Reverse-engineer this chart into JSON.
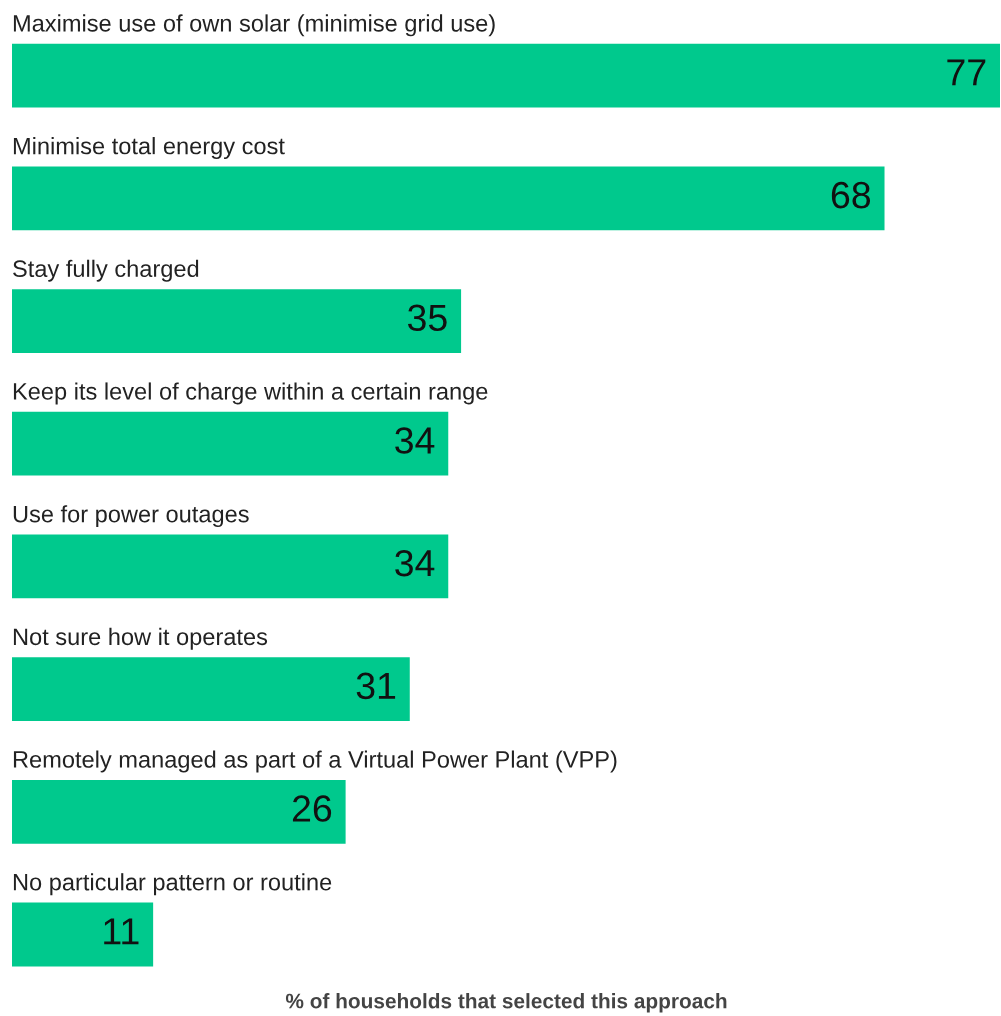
{
  "chart_data": {
    "type": "bar",
    "orientation": "horizontal",
    "xlabel": "% of households that selected this approach",
    "categories": [
      "Maximise use of own solar (minimise grid use)",
      "Minimise total energy cost",
      "Stay fully charged",
      "Keep its level of charge within a certain range",
      "Use for power outages",
      "Not sure how it operates",
      "Remotely managed as part of a Virtual Power Plant (VPP)",
      "No particular pattern or routine"
    ],
    "values": [
      77,
      68,
      35,
      34,
      34,
      31,
      26,
      11
    ],
    "color": "#00c98d",
    "xlim": [
      0,
      77
    ],
    "data_labels": true,
    "tick_labels": false
  }
}
